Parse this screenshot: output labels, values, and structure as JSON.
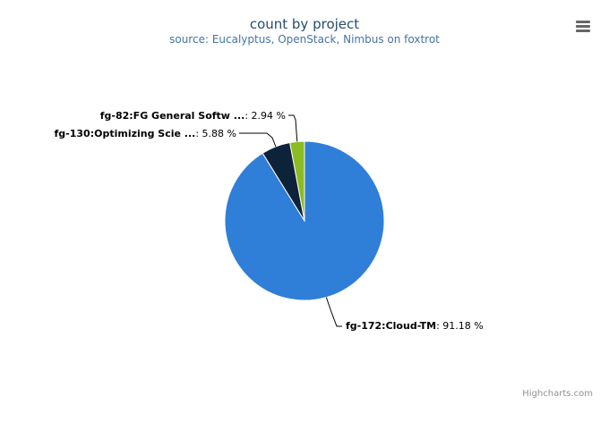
{
  "chart_data": {
    "type": "pie",
    "title": "count by project",
    "subtitle": "source: Eucalyptus, OpenStack, Nimbus on foxtrot",
    "slices": [
      {
        "name": "fg-82:FG General Softw ...",
        "value": 2.94,
        "value_text": "2.94 %",
        "color": "#8bbc21"
      },
      {
        "name": "fg-130:Optimizing Scie ...",
        "value": 5.88,
        "value_text": "5.88 %",
        "color": "#0d233a"
      },
      {
        "name": "fg-172:Cloud-TM",
        "value": 91.18,
        "value_text": "91.18 %",
        "color": "#2f7ed8"
      }
    ],
    "credits": "Highcharts.com"
  },
  "toolbar": {
    "menu_icon": "hamburger-menu-icon"
  }
}
